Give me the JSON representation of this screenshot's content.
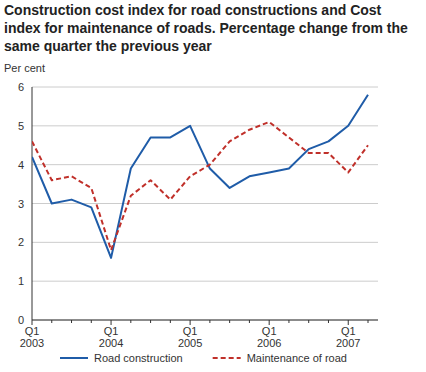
{
  "chart_data": {
    "type": "line",
    "title": "Construction cost index for road constructions and Cost index for maintenance of roads. Percentage change from the same quarter the previous year",
    "y_label": "Per cent",
    "categories": [
      "Q1 2003",
      null,
      null,
      null,
      "Q1 2004",
      null,
      null,
      null,
      "Q1 2005",
      null,
      null,
      null,
      "Q1 2006",
      null,
      null,
      null,
      "Q1 2007",
      null
    ],
    "series": [
      {
        "name": "Road construction",
        "color": "#1f5ca8",
        "line_style": "solid",
        "values": [
          4.2,
          3.0,
          3.1,
          2.9,
          1.6,
          3.9,
          4.7,
          4.7,
          5.0,
          3.9,
          3.4,
          3.7,
          3.8,
          3.9,
          4.4,
          4.6,
          5.0,
          5.8
        ]
      },
      {
        "name": "Maintenance of road",
        "color": "#c0302a",
        "line_style": "dashed",
        "values": [
          4.6,
          3.6,
          3.7,
          3.4,
          1.8,
          3.2,
          3.6,
          3.1,
          3.7,
          4.0,
          4.6,
          4.9,
          5.1,
          4.7,
          4.3,
          4.3,
          3.8,
          4.5
        ]
      }
    ],
    "ylim": [
      0,
      6
    ],
    "yticks": [
      0,
      1,
      2,
      3,
      4,
      5,
      6
    ],
    "grid": true,
    "legend": "bottom"
  }
}
